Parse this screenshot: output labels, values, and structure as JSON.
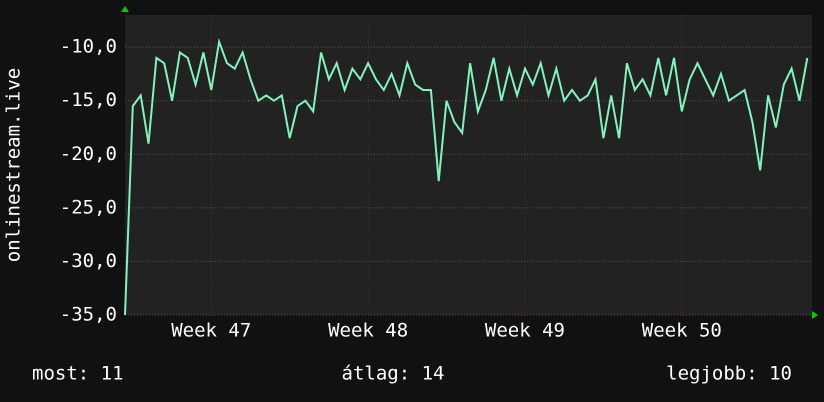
{
  "chart_data": {
    "type": "line",
    "ylabel": "onlinestream.live",
    "x": [
      46.45,
      46.5,
      46.55,
      46.6,
      46.65,
      46.7,
      46.75,
      46.8,
      46.85,
      46.9,
      46.95,
      47.0,
      47.05,
      47.1,
      47.15,
      47.2,
      47.25,
      47.3,
      47.35,
      47.4,
      47.45,
      47.5,
      47.55,
      47.6,
      47.65,
      47.7,
      47.75,
      47.8,
      47.85,
      47.9,
      47.95,
      48.0,
      48.05,
      48.1,
      48.15,
      48.2,
      48.25,
      48.3,
      48.35,
      48.4,
      48.45,
      48.5,
      48.55,
      48.6,
      48.65,
      48.7,
      48.75,
      48.8,
      48.85,
      48.9,
      48.95,
      49.0,
      49.05,
      49.1,
      49.15,
      49.2,
      49.25,
      49.3,
      49.35,
      49.4,
      49.45,
      49.5,
      49.55,
      49.6,
      49.65,
      49.7,
      49.75,
      49.8,
      49.85,
      49.9,
      49.95,
      50.0,
      50.05,
      50.1,
      50.15,
      50.2,
      50.25,
      50.3,
      50.35,
      50.4,
      50.45,
      50.5,
      50.55,
      50.6,
      50.65,
      50.7,
      50.75,
      50.8
    ],
    "series": [
      {
        "color": "#7ff5bb",
        "values": [
          -35,
          -15.5,
          -14.5,
          -19,
          -11,
          -11.5,
          -15,
          -10.5,
          -11,
          -13.5,
          -10.5,
          -14,
          -9.5,
          -11.5,
          -12,
          -10.5,
          -13,
          -15,
          -14.5,
          -15,
          -14.5,
          -18.5,
          -15.5,
          -15,
          -16,
          -10.5,
          -13,
          -11.5,
          -14,
          -12,
          -13,
          -11.5,
          -13,
          -14,
          -12.5,
          -14.5,
          -11.5,
          -13.5,
          -14,
          -14,
          -22.5,
          -15,
          -17,
          -18,
          -11.5,
          -16,
          -14,
          -11,
          -15,
          -12,
          -14.5,
          -12,
          -13.5,
          -11.5,
          -14.5,
          -12,
          -15,
          -14,
          -15,
          -14.5,
          -13,
          -18.5,
          -14.5,
          -18.5,
          -11.5,
          -14,
          -13,
          -14.5,
          -11,
          -14.5,
          -11,
          -16,
          -13,
          -11.5,
          -13,
          -14.5,
          -12.5,
          -15,
          -14.5,
          -14,
          -17,
          -21.5,
          -14.5,
          -17.5,
          -13.5,
          -12,
          -15,
          -11
        ]
      }
    ],
    "xlim": [
      46.45,
      50.83
    ],
    "xticks": [
      {
        "value": 47,
        "label": "Week 47"
      },
      {
        "value": 48,
        "label": "Week 48"
      },
      {
        "value": 49,
        "label": "Week 49"
      },
      {
        "value": 50,
        "label": "Week 50"
      }
    ],
    "ylim": [
      -35,
      -7
    ],
    "yticks": [
      {
        "value": -35,
        "label": "-35,0"
      },
      {
        "value": -30,
        "label": "-30,0"
      },
      {
        "value": -25,
        "label": "-25,0"
      },
      {
        "value": -20,
        "label": "-20,0"
      },
      {
        "value": -15,
        "label": "-15,0"
      },
      {
        "value": -10,
        "label": "-10,0"
      }
    ],
    "grid": true,
    "annotations": [
      "most: 11",
      "átlag: 14",
      "legjobb: 10"
    ]
  }
}
